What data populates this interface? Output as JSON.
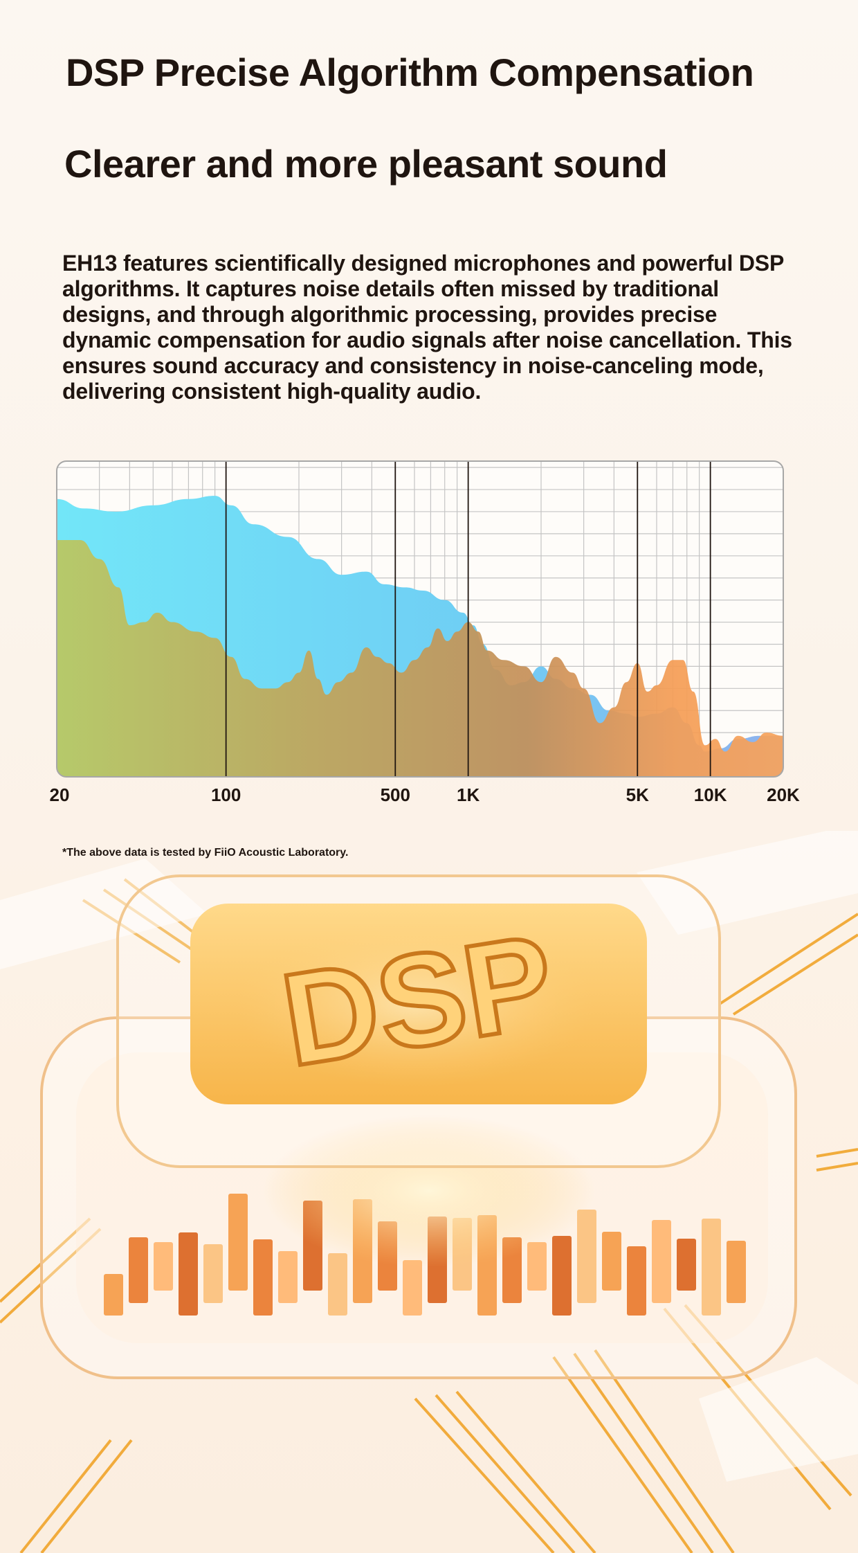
{
  "heading": {
    "title": "DSP Precise Algorithm Compensation",
    "subtitle": "Clearer and more pleasant sound"
  },
  "description": "EH13 features scientifically designed microphones and powerful DSP algorithms. It captures noise details often missed by traditional designs, and through algorithmic processing, provides precise dynamic compensation for audio signals after noise cancellation. This ensures sound accuracy and consistency in noise-canceling mode, delivering consistent high-quality audio.",
  "footnote": "*The above data is tested by FiiO Acoustic Laboratory.",
  "illustration": {
    "logo_text": "DSP",
    "icon": "dsp-chip-icon"
  },
  "colors": {
    "series_blue": "#6cdcf6",
    "series_orange": "#f7a35c",
    "series_olive": "#b9c462",
    "series_brown": "#c0905a",
    "accent": "#f0a020"
  },
  "chart_data": {
    "type": "area",
    "x_scale": "log",
    "xlim": [
      20,
      20000
    ],
    "ylim": [
      0,
      100
    ],
    "grid": true,
    "legend": "none",
    "x_ticks": [
      {
        "value": 20,
        "label": "20"
      },
      {
        "value": 100,
        "label": "100"
      },
      {
        "value": 500,
        "label": "500"
      },
      {
        "value": 1000,
        "label": "1K"
      },
      {
        "value": 5000,
        "label": "5K"
      },
      {
        "value": 10000,
        "label": "10K"
      },
      {
        "value": 20000,
        "label": "20K"
      }
    ],
    "series": [
      {
        "points": [
          [
            20,
            88
          ],
          [
            26,
            85
          ],
          [
            35,
            84
          ],
          [
            50,
            86
          ],
          [
            70,
            88
          ],
          [
            90,
            89
          ],
          [
            105,
            86
          ],
          [
            130,
            80
          ],
          [
            180,
            76
          ],
          [
            240,
            69
          ],
          [
            300,
            64
          ],
          [
            380,
            65
          ],
          [
            450,
            61
          ],
          [
            550,
            60
          ],
          [
            650,
            59
          ],
          [
            800,
            56
          ],
          [
            950,
            52
          ],
          [
            1050,
            48
          ],
          [
            1150,
            42
          ],
          [
            1300,
            34
          ],
          [
            1500,
            29
          ],
          [
            1700,
            30
          ],
          [
            2000,
            35
          ],
          [
            2300,
            31
          ],
          [
            2700,
            28
          ],
          [
            3200,
            26
          ],
          [
            3800,
            21
          ],
          [
            4500,
            20
          ],
          [
            5000,
            19
          ],
          [
            6000,
            20
          ],
          [
            7000,
            22
          ],
          [
            8000,
            17
          ],
          [
            9000,
            10
          ],
          [
            9500,
            8
          ],
          [
            11000,
            9
          ],
          [
            13000,
            12
          ],
          [
            16000,
            13
          ],
          [
            20000,
            13
          ]
        ]
      },
      {
        "points": [
          [
            20,
            75
          ],
          [
            25,
            75
          ],
          [
            30,
            69
          ],
          [
            36,
            60
          ],
          [
            40,
            48
          ],
          [
            46,
            49
          ],
          [
            52,
            52
          ],
          [
            60,
            49
          ],
          [
            75,
            46
          ],
          [
            90,
            44
          ],
          [
            105,
            38
          ],
          [
            120,
            31
          ],
          [
            140,
            28
          ],
          [
            160,
            28
          ],
          [
            180,
            30
          ],
          [
            200,
            33
          ],
          [
            220,
            40
          ],
          [
            240,
            31
          ],
          [
            260,
            26
          ],
          [
            290,
            30
          ],
          [
            330,
            33
          ],
          [
            380,
            41
          ],
          [
            420,
            38
          ],
          [
            470,
            36
          ],
          [
            530,
            33
          ],
          [
            600,
            37
          ],
          [
            680,
            41
          ],
          [
            750,
            47
          ],
          [
            820,
            43
          ],
          [
            900,
            46
          ],
          [
            1000,
            49
          ],
          [
            1100,
            46
          ],
          [
            1200,
            40
          ],
          [
            1400,
            37
          ],
          [
            1700,
            35
          ],
          [
            2000,
            30
          ],
          [
            2300,
            38
          ],
          [
            2700,
            33
          ],
          [
            3000,
            28
          ],
          [
            3500,
            17
          ],
          [
            4000,
            22
          ],
          [
            4500,
            30
          ],
          [
            5000,
            36
          ],
          [
            5500,
            27
          ],
          [
            6000,
            29
          ],
          [
            7000,
            37
          ],
          [
            7700,
            37
          ],
          [
            8500,
            27
          ],
          [
            9500,
            10
          ],
          [
            10500,
            12
          ],
          [
            11500,
            8
          ],
          [
            13000,
            13
          ],
          [
            15000,
            11
          ],
          [
            17000,
            14
          ],
          [
            20000,
            13
          ]
        ]
      }
    ]
  }
}
